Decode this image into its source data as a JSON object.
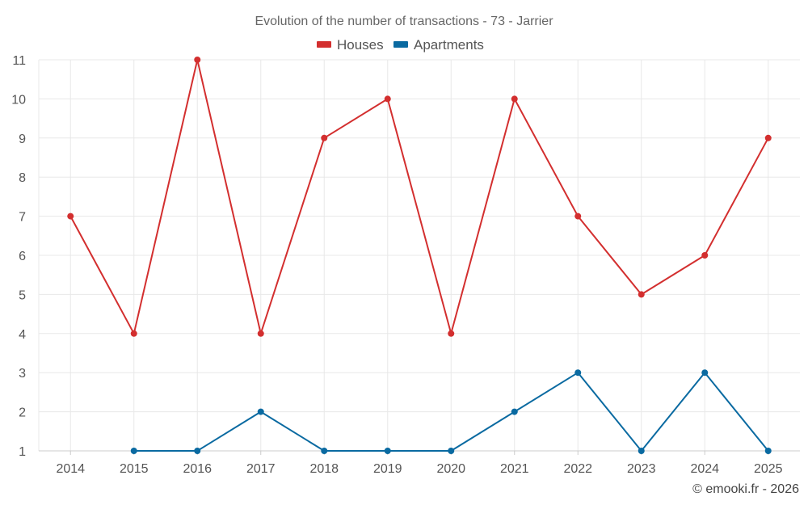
{
  "chart_data": {
    "type": "line",
    "title": "Evolution of the number of transactions - 73 - Jarrier",
    "x": [
      "2014",
      "2015",
      "2016",
      "2017",
      "2018",
      "2019",
      "2020",
      "2021",
      "2022",
      "2023",
      "2024",
      "2025"
    ],
    "series": [
      {
        "name": "Houses",
        "color": "#d32f2f",
        "values": [
          7,
          4,
          11,
          4,
          9,
          10,
          4,
          10,
          7,
          5,
          6,
          9
        ]
      },
      {
        "name": "Apartments",
        "color": "#0a6aa1",
        "values": [
          null,
          1,
          1,
          2,
          1,
          1,
          1,
          2,
          3,
          1,
          3,
          1
        ]
      }
    ],
    "ylim": [
      1,
      11
    ],
    "yticks": [
      "1",
      "2",
      "3",
      "4",
      "5",
      "6",
      "7",
      "8",
      "9",
      "10",
      "11"
    ],
    "xlabel": "",
    "ylabel": "",
    "grid": true,
    "legend_position": "top-center"
  },
  "credit": "© emooki.fr - 2026"
}
